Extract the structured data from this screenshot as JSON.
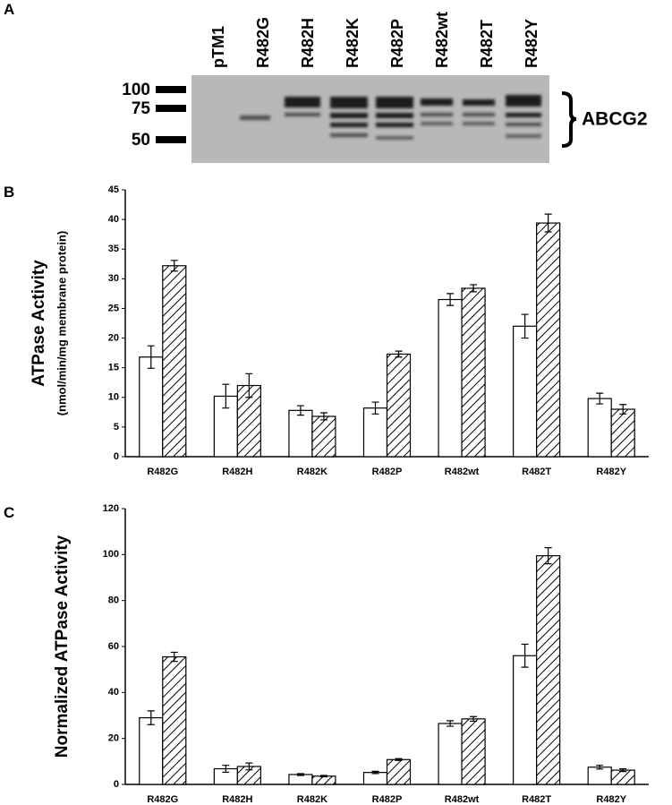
{
  "panel_labels": [
    "A",
    "B",
    "C"
  ],
  "gel": {
    "lanes": [
      "pTM1",
      "R482G",
      "R482H",
      "R482K",
      "R482P",
      "R482wt",
      "R482T",
      "R482Y"
    ],
    "markers": [
      "100",
      "75",
      "50"
    ],
    "label": "ABCG2"
  },
  "chart_data": [
    {
      "type": "bar",
      "ylabel": "ATPase Activity",
      "ylabel_units": "(nmol/min/mg membrane protein)",
      "categories": [
        "R482G",
        "R482H",
        "R482K",
        "R482P",
        "R482wt",
        "R482T",
        "R482Y"
      ],
      "series": [
        {
          "color": "#ffffff",
          "hatch": false,
          "values": [
            16.8,
            10.2,
            7.8,
            8.2,
            26.5,
            22.0,
            9.8
          ],
          "errors": [
            1.9,
            2.0,
            0.8,
            1.0,
            1.0,
            2.0,
            0.9
          ]
        },
        {
          "color": "#ffffff",
          "hatch": true,
          "values": [
            32.2,
            12.0,
            6.8,
            17.3,
            28.4,
            39.4,
            8.0
          ],
          "errors": [
            0.9,
            2.0,
            0.6,
            0.5,
            0.6,
            1.5,
            0.8
          ]
        }
      ],
      "ylim": [
        0,
        45
      ],
      "yticks": [
        0,
        5,
        10,
        15,
        20,
        25,
        30,
        35,
        40,
        45
      ],
      "grid": false
    },
    {
      "type": "bar",
      "ylabel": "Normalized ATPase Activity",
      "categories": [
        "R482G",
        "R482H",
        "R482K",
        "R482P",
        "R482wt",
        "R482T",
        "R482Y"
      ],
      "series": [
        {
          "color": "#ffffff",
          "hatch": false,
          "values": [
            29,
            6.8,
            4.3,
            5.2,
            26.5,
            56,
            7.5
          ],
          "errors": [
            3,
            1.5,
            0.4,
            0.5,
            1.2,
            5,
            0.8
          ]
        },
        {
          "color": "#ffffff",
          "hatch": true,
          "values": [
            55.5,
            7.8,
            3.6,
            10.8,
            28.5,
            99.5,
            6.2
          ],
          "errors": [
            2,
            1.5,
            0.3,
            0.4,
            1.0,
            3.5,
            0.6
          ]
        }
      ],
      "ylim": [
        0,
        120
      ],
      "yticks": [
        0,
        20,
        40,
        60,
        80,
        100,
        120
      ],
      "grid": false
    }
  ]
}
